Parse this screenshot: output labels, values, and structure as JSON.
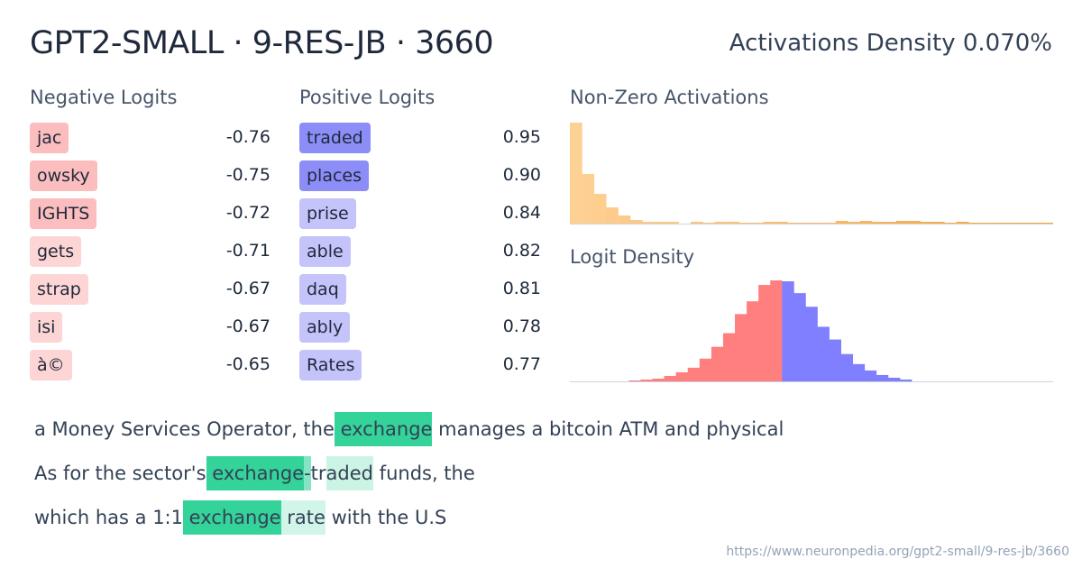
{
  "header": {
    "title": "GPT2-SMALL · 9-RES-JB · 3660",
    "density_label": "Activations Density 0.070%"
  },
  "negative_logits": {
    "label": "Negative Logits",
    "items": [
      {
        "token": "jac",
        "value": "-0.76",
        "color": "#fbbdbd"
      },
      {
        "token": "owsky",
        "value": "-0.75",
        "color": "#fbbdbd"
      },
      {
        "token": "IGHTS",
        "value": "-0.72",
        "color": "#fbbdbd"
      },
      {
        "token": "gets",
        "value": "-0.71",
        "color": "#fdd5d5"
      },
      {
        "token": "strap",
        "value": "-0.67",
        "color": "#fdd5d5"
      },
      {
        "token": "isi",
        "value": "-0.67",
        "color": "#fdd5d5"
      },
      {
        "token": "à©",
        "value": "-0.65",
        "color": "#fdd5d5"
      }
    ]
  },
  "positive_logits": {
    "label": "Positive Logits",
    "items": [
      {
        "token": " traded",
        "value": "0.95",
        "color": "#8d8df7"
      },
      {
        "token": "places",
        "value": "0.90",
        "color": "#8d8df7"
      },
      {
        "token": "prise",
        "value": "0.84",
        "color": "#c4c4fb"
      },
      {
        "token": "able",
        "value": "0.82",
        "color": "#c4c4fb"
      },
      {
        "token": "daq",
        "value": "0.81",
        "color": "#c4c4fb"
      },
      {
        "token": "ably",
        "value": "0.78",
        "color": "#c4c4fb"
      },
      {
        "token": " Rates",
        "value": "0.77",
        "color": "#c4c4fb"
      }
    ]
  },
  "chart_data": [
    {
      "type": "bar",
      "title": "Non-Zero Activations",
      "colors": [
        "#fdd093",
        "#f7a23a"
      ],
      "values": [
        112,
        55,
        33,
        18,
        9,
        4,
        2,
        2,
        2,
        0,
        2,
        1,
        2,
        2,
        1,
        1,
        2,
        2,
        1,
        1,
        1,
        1,
        3,
        2,
        3,
        2,
        2,
        3,
        3,
        2,
        2,
        1,
        2,
        1,
        1,
        1,
        1,
        1,
        1,
        1
      ]
    },
    {
      "type": "bar",
      "title": "Logit Density",
      "colors": {
        "negative": "#ff7f7f",
        "positive": "#7f7fff"
      },
      "values": [
        0,
        0,
        0,
        0,
        0,
        1,
        2,
        3,
        6,
        10,
        15,
        25,
        38,
        53,
        74,
        88,
        106,
        111,
        110,
        97,
        82,
        60,
        46,
        30,
        19,
        12,
        7,
        4,
        2,
        0,
        0,
        0,
        0,
        0,
        0,
        0,
        0,
        0,
        0,
        0,
        0
      ],
      "split_index": 18
    }
  ],
  "examples": [
    [
      {
        "t": "a Money Services Operator, the",
        "a": 0
      },
      {
        "t": " exchange",
        "a": 1
      },
      {
        "t": " manages a bitcoin ATM and physical",
        "a": 0
      }
    ],
    [
      {
        "t": "As for the sector's",
        "a": 0
      },
      {
        "t": " exchange",
        "a": 1
      },
      {
        "t": "-",
        "a": 0.6
      },
      {
        "t": "tr",
        "a": 0
      },
      {
        "t": "aded",
        "a": 0.25
      },
      {
        "t": " funds, the",
        "a": 0
      }
    ],
    [
      {
        "t": "which has a 1:1",
        "a": 0
      },
      {
        "t": " exchange",
        "a": 1
      },
      {
        "t": " rate",
        "a": 0.22
      },
      {
        "t": " with the U.S",
        "a": 0
      }
    ]
  ],
  "activation_color": "#34d399",
  "footer_url": "https://www.neuronpedia.org/gpt2-small/9-res-jb/3660"
}
